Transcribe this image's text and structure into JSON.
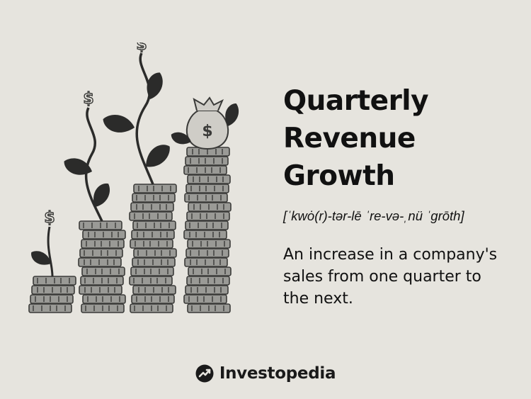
{
  "definition_card": {
    "title_lines": [
      "Quarterly",
      "Revenue",
      "Growth"
    ],
    "pronunciation": "[ˈkwȯ(r)-tər-lē ˈre-və-ˌnü ˈgrōth]",
    "definition_lines": [
      "An increase in a company's",
      "sales from one quarter to",
      "the next."
    ]
  },
  "illustration": {
    "description_icon": "coin-stacks-with-dollar-sprouts-icon",
    "coin_stack_heights": [
      1,
      2,
      3,
      4
    ],
    "money_bag_symbol": "$",
    "sprout_symbols": [
      "$",
      "$",
      "$"
    ]
  },
  "brand": {
    "name": "Investopedia",
    "logo_icon": "investopedia-logo-icon"
  },
  "colors": {
    "background": "#e6e4de",
    "text": "#111111",
    "coin_fill": "#9a9a96",
    "coin_dark": "#3a3a38",
    "leaf": "#2b2b2a",
    "bag": "#cfcdc7"
  }
}
